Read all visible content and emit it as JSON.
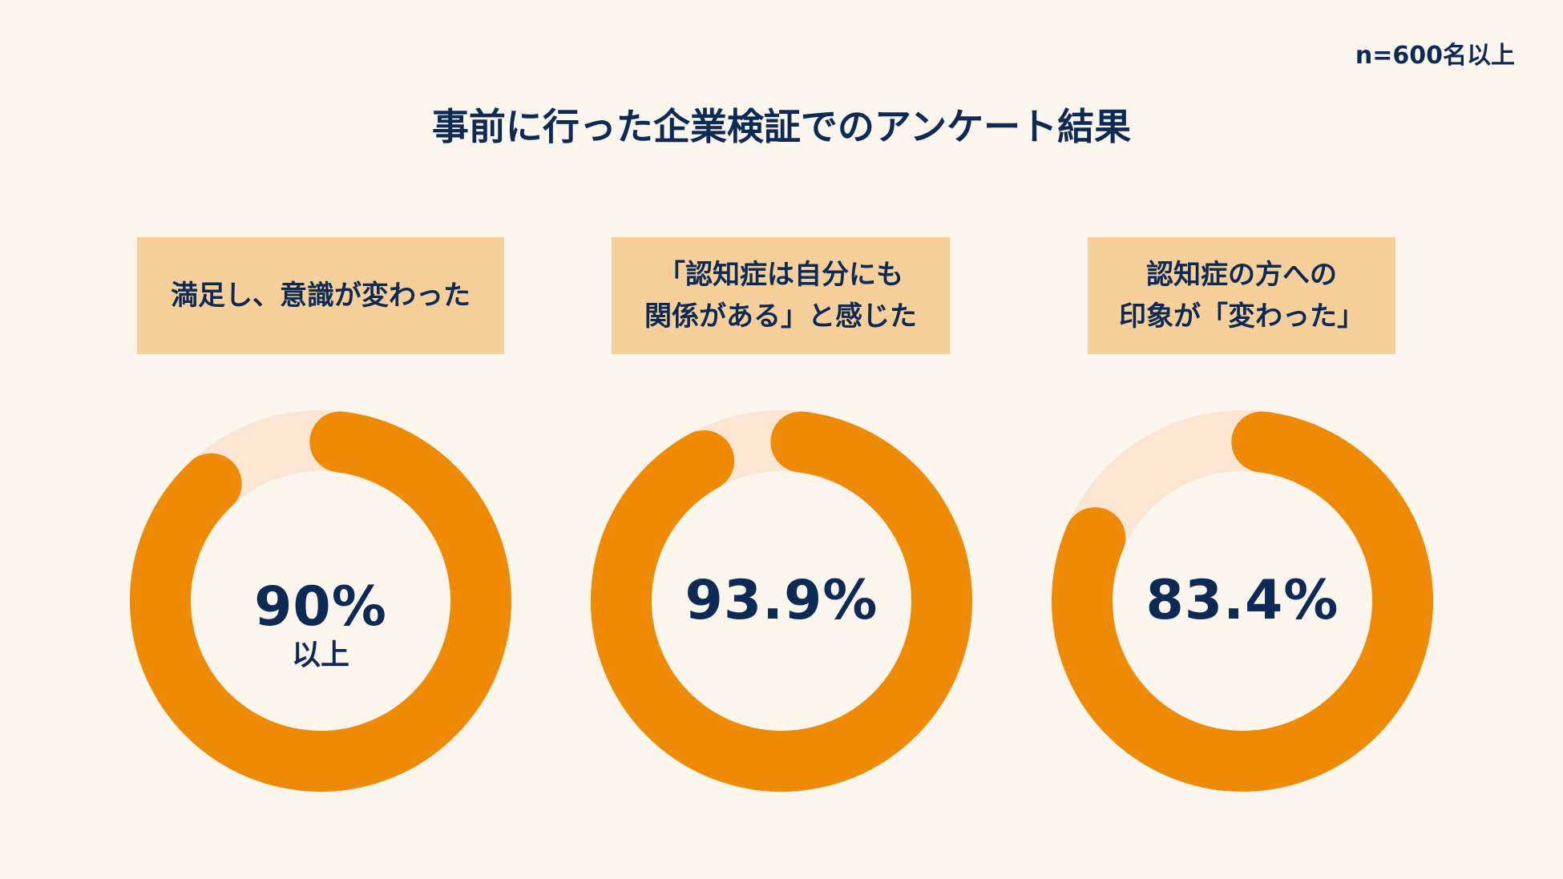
{
  "sample_note": "n=600名以上",
  "title": "事前に行った企業検証でのアンケート結果",
  "colors": {
    "background": "#fdf6ee",
    "label_box": "#f6cf9b",
    "donut_fill": "#ef8a05",
    "donut_track": "#fae6d2",
    "text": "#0d2a55"
  },
  "chart_data": [
    {
      "type": "pie",
      "title": "満足し、意識が変わった",
      "value": 90,
      "value_label": "90%",
      "value_suffix": "以上"
    },
    {
      "type": "pie",
      "title": "「認知症は自分にも\n関係がある」と感じた",
      "value": 93.9,
      "value_label": "93.9%",
      "value_suffix": ""
    },
    {
      "type": "pie",
      "title": "認知症の方への\n印象が「変わった」",
      "value": 83.4,
      "value_label": "83.4%",
      "value_suffix": ""
    }
  ]
}
